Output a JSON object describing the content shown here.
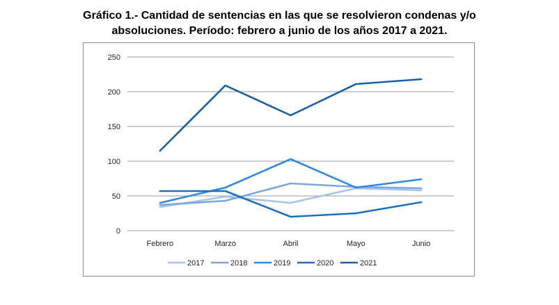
{
  "chart_data": {
    "type": "line",
    "title_lines": [
      "Gráfico 1.- Cantidad de sentencias en las que se resolvieron condenas y/o",
      "absoluciones. Período: febrero a junio de los años 2017 a 2021."
    ],
    "categories": [
      "Febrero",
      "Marzo",
      "Abril",
      "Mayo",
      "Junio"
    ],
    "ylim": [
      0,
      250
    ],
    "yticks": [
      0,
      50,
      100,
      150,
      200,
      250
    ],
    "grid": true,
    "legend": "bottom",
    "series": [
      {
        "name": "2017",
        "color": "#a9c4ea",
        "values": [
          34,
          49,
          40,
          61,
          58
        ]
      },
      {
        "name": "2018",
        "color": "#7ba6e2",
        "values": [
          37,
          43,
          68,
          63,
          61
        ]
      },
      {
        "name": "2019",
        "color": "#2e8be0",
        "values": [
          40,
          62,
          103,
          62,
          74
        ]
      },
      {
        "name": "2020",
        "color": "#1c70c4",
        "values": [
          57,
          57,
          20,
          25,
          41
        ]
      },
      {
        "name": "2021",
        "color": "#1560ad",
        "values": [
          115,
          209,
          166,
          211,
          218
        ]
      }
    ]
  }
}
